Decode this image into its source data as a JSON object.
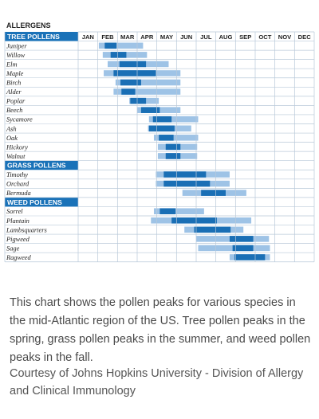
{
  "chart_data": {
    "type": "gantt",
    "title": "ALLERGENS",
    "months": [
      "JAN",
      "FEB",
      "MAR",
      "APR",
      "MAY",
      "JUN",
      "JUL",
      "AUG",
      "SEP",
      "OCT",
      "NOV",
      "DEC"
    ],
    "groups": [
      {
        "name": "TREE POLLENS",
        "items": [
          {
            "name": "Juniper",
            "season": [
              1.05,
              3.3
            ],
            "peak": [
              1.35,
              1.95
            ]
          },
          {
            "name": "Willow",
            "season": [
              1.25,
              3.5
            ],
            "peak": [
              1.65,
              2.45
            ]
          },
          {
            "name": "Elm",
            "season": [
              1.5,
              4.6
            ],
            "peak": [
              2.1,
              3.45
            ]
          },
          {
            "name": "Maple",
            "season": [
              1.3,
              5.2
            ],
            "peak": [
              1.8,
              3.95
            ]
          },
          {
            "name": "Birch",
            "season": [
              1.9,
              5.2
            ],
            "peak": [
              2.15,
              3.2
            ]
          },
          {
            "name": "Alder",
            "season": [
              1.8,
              5.2
            ],
            "peak": [
              2.2,
              2.9
            ]
          },
          {
            "name": "Poplar",
            "season": [
              2.6,
              4.1
            ],
            "peak": [
              2.65,
              3.45
            ]
          },
          {
            "name": "Beech",
            "season": [
              3.0,
              5.2
            ],
            "peak": [
              3.2,
              4.15
            ]
          },
          {
            "name": "Sycamore",
            "season": [
              3.6,
              6.1
            ],
            "peak": [
              3.8,
              4.75
            ]
          },
          {
            "name": "Ash",
            "season": [
              3.55,
              5.75
            ],
            "peak": [
              3.6,
              4.9
            ]
          },
          {
            "name": "Oak",
            "season": [
              3.85,
              6.1
            ],
            "peak": [
              4.1,
              4.85
            ]
          },
          {
            "name": "Hickory",
            "season": [
              4.05,
              6.05
            ],
            "peak": [
              4.45,
              5.2
            ]
          },
          {
            "name": "Walnut",
            "season": [
              4.05,
              6.05
            ],
            "peak": [
              4.45,
              5.2
            ]
          }
        ]
      },
      {
        "name": "GRASS POLLENS",
        "items": [
          {
            "name": "Timothy",
            "season": [
              3.95,
              7.7
            ],
            "peak": [
              4.35,
              6.5
            ]
          },
          {
            "name": "Orchard",
            "season": [
              3.95,
              7.7
            ],
            "peak": [
              4.35,
              6.7
            ]
          },
          {
            "name": "Bermuda",
            "season": [
              5.3,
              8.55
            ],
            "peak": [
              6.25,
              7.5
            ]
          }
        ]
      },
      {
        "name": "WEED POLLENS",
        "items": [
          {
            "name": "Sorrel",
            "season": [
              3.85,
              6.4
            ],
            "peak": [
              4.15,
              4.95
            ]
          },
          {
            "name": "Plantain",
            "season": [
              3.7,
              8.8
            ],
            "peak": [
              4.75,
              7.05
            ]
          },
          {
            "name": "Lambsquarters",
            "season": [
              5.4,
              8.4
            ],
            "peak": [
              5.9,
              7.75
            ]
          },
          {
            "name": "Pigweed",
            "season": [
              6.0,
              9.7
            ],
            "peak": [
              7.7,
              8.9
            ]
          },
          {
            "name": "Sage",
            "season": [
              6.1,
              9.75
            ],
            "peak": [
              7.85,
              8.9
            ]
          },
          {
            "name": "Ragweed",
            "season": [
              7.7,
              9.75
            ],
            "peak": [
              7.95,
              9.5
            ]
          }
        ]
      }
    ],
    "colors": {
      "header_bg": "#1a72b8",
      "season": "#9ec3e6",
      "peak": "#1a6fb5",
      "grid": "#b9c9d9"
    }
  },
  "caption": "This chart shows the pollen peaks for various species in the mid-Atlantic region of the US. Tree pollen peaks in the spring, grass pollen peaks in the summer, and weed pollen peaks in the fall.",
  "credit": "Courtesy of Johns Hopkins University - Division of Allergy and Clinical Immunology"
}
